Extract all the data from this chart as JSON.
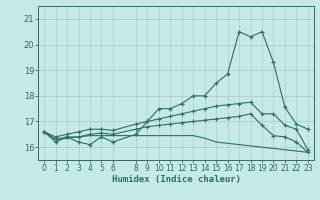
{
  "xlabel": "Humidex (Indice chaleur)",
  "background_color": "#c5e8e8",
  "line_color": "#2a7060",
  "grid_color": "#a8cccc",
  "xlim": [
    -0.5,
    23.5
  ],
  "ylim": [
    15.5,
    21.5
  ],
  "xticks": [
    0,
    1,
    2,
    3,
    4,
    5,
    6,
    8,
    9,
    10,
    11,
    12,
    13,
    14,
    15,
    16,
    17,
    18,
    19,
    20,
    21,
    22,
    23
  ],
  "yticks": [
    16,
    17,
    18,
    19,
    20,
    21
  ],
  "hours": [
    0,
    1,
    2,
    3,
    4,
    5,
    6,
    8,
    9,
    10,
    11,
    12,
    13,
    14,
    15,
    16,
    17,
    18,
    19,
    20,
    21,
    22,
    23
  ],
  "line_main": [
    16.6,
    16.2,
    16.4,
    16.2,
    16.1,
    16.4,
    16.2,
    16.5,
    17.0,
    17.5,
    17.5,
    17.7,
    18.0,
    18.0,
    18.5,
    18.85,
    20.5,
    20.3,
    20.5,
    19.3,
    17.55,
    16.9,
    16.7
  ],
  "line_upper": [
    16.6,
    16.4,
    16.5,
    16.6,
    16.7,
    16.7,
    16.65,
    16.9,
    17.0,
    17.1,
    17.2,
    17.3,
    17.4,
    17.5,
    17.6,
    17.65,
    17.7,
    17.75,
    17.3,
    17.3,
    16.85,
    16.7,
    15.9
  ],
  "line_lower": [
    16.6,
    16.3,
    16.4,
    16.4,
    16.5,
    16.55,
    16.5,
    16.7,
    16.8,
    16.85,
    16.9,
    16.95,
    17.0,
    17.05,
    17.1,
    17.15,
    17.2,
    17.3,
    16.85,
    16.45,
    16.4,
    16.2,
    15.8
  ],
  "line_flat": [
    16.6,
    16.3,
    16.35,
    16.4,
    16.45,
    16.45,
    16.45,
    16.45,
    16.45,
    16.45,
    16.45,
    16.45,
    16.45,
    16.35,
    16.2,
    16.15,
    16.1,
    16.05,
    16.0,
    15.95,
    15.9,
    15.85,
    15.8
  ]
}
